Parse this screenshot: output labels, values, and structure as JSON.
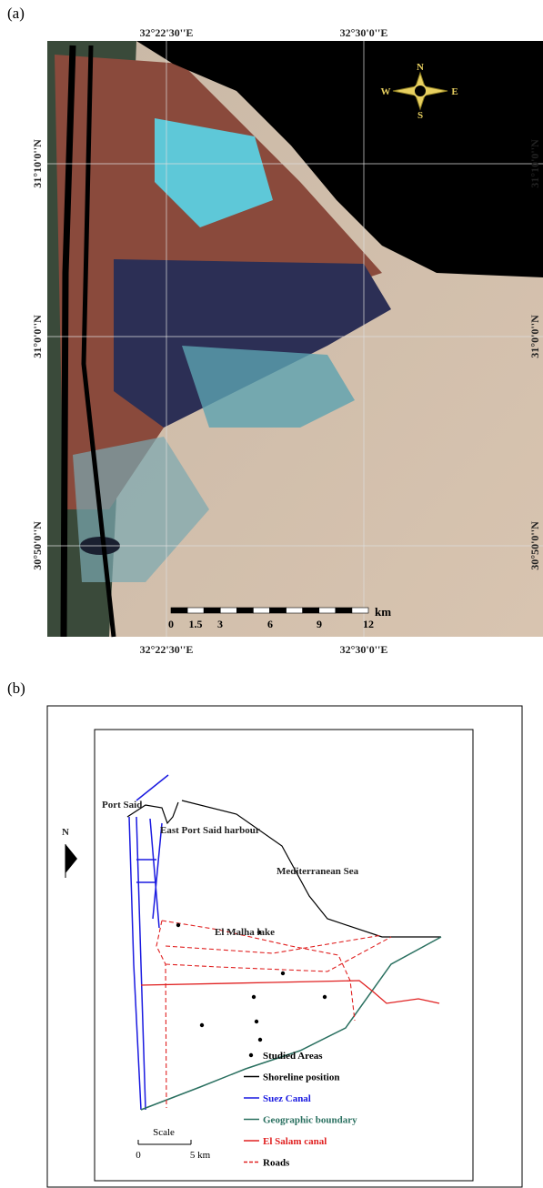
{
  "panel_a": {
    "label": "(a)",
    "top_labels": [
      "32°22'30''E",
      "32°30'0''E"
    ],
    "bottom_labels": [
      "32°22'30''E",
      "32°30'0''E"
    ],
    "left_labels": [
      "31°10'0''N",
      "31°0'0''N",
      "30°50'0''N"
    ],
    "right_labels": [
      "31°10'0''N",
      "31°0'0''N",
      "30°50'0''N"
    ],
    "compass": {
      "n": "N",
      "s": "S",
      "e": "E",
      "w": "W"
    },
    "scale": {
      "unit": "km",
      "ticks": [
        "0",
        "1.5",
        "3",
        "6",
        "9",
        "12"
      ]
    }
  },
  "panel_b": {
    "label": "(b)",
    "north": "N",
    "places": [
      "Port Said",
      "East Port Said harbour",
      "Mediterranean Sea",
      "El Malha lake"
    ],
    "legend": [
      "Studied Areas",
      "Shoreline position",
      "Suez Canal",
      "Geographic boundary",
      "El Salam canal",
      "Roads"
    ],
    "scale": {
      "title": "Scale",
      "start": "0",
      "end": "5 km"
    }
  }
}
